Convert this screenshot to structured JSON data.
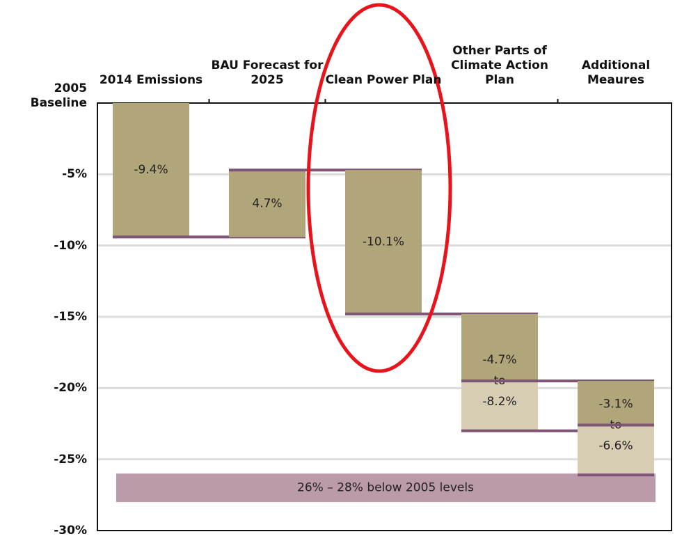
{
  "chart_data": {
    "type": "waterfall",
    "categories": [
      "2014 Emissions",
      "BAU Forecast for 2025",
      "Clean Power Plan",
      "Other Parts of Climate Action Plan",
      "Additional Meaures"
    ],
    "values": [
      -9.4,
      4.7,
      -10.1,
      -4.7,
      -3.1
    ],
    "value_labels": [
      "-9.4%",
      "4.7%",
      "-10.1%",
      "-4.7%",
      "-3.1%"
    ],
    "range_values": [
      null,
      null,
      null,
      -8.2,
      -6.6
    ],
    "range_value_labels": [
      null,
      null,
      null,
      "-8.2%",
      "-6.6%"
    ],
    "range_connector": "to",
    "color": "#b1a57a",
    "range_color": "#d7cdb2",
    "connector_color": "#7d5474",
    "target_band": {
      "label": "26% – 28% below 2005 levels",
      "range": [
        -26,
        -28
      ],
      "color": "#bb9ba9"
    },
    "ylim": [
      -30,
      0
    ],
    "yticks": [
      {
        "value": 0,
        "label": "2005 Baseline"
      },
      {
        "value": -5,
        "label": "-5%"
      },
      {
        "value": -10,
        "label": "-10%"
      },
      {
        "value": -15,
        "label": "-15%"
      },
      {
        "value": -20,
        "label": "-20%"
      },
      {
        "value": -25,
        "label": "-25%"
      },
      {
        "value": -30,
        "label": "-30%"
      }
    ],
    "grid": true
  }
}
